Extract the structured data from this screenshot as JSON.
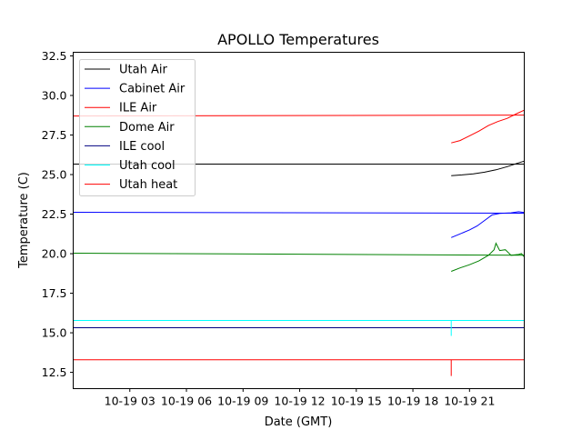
{
  "chart_data": {
    "type": "line",
    "title": "APOLLO Temperatures",
    "xlabel": "Date (GMT)",
    "ylabel": "Temperature (C)",
    "x_unit": "hours since 10-19 00",
    "xlim": [
      0,
      23.9
    ],
    "ylim": [
      11.47,
      32.73
    ],
    "xticks": [
      {
        "value": 3,
        "label": "10-19 03"
      },
      {
        "value": 6,
        "label": "10-19 06"
      },
      {
        "value": 9,
        "label": "10-19 09"
      },
      {
        "value": 12,
        "label": "10-19 12"
      },
      {
        "value": 15,
        "label": "10-19 15"
      },
      {
        "value": 18,
        "label": "10-19 18"
      },
      {
        "value": 21,
        "label": "10-19 21"
      }
    ],
    "yticks": [
      {
        "value": 12.5,
        "label": "12.5"
      },
      {
        "value": 15.0,
        "label": "15.0"
      },
      {
        "value": 17.5,
        "label": "17.5"
      },
      {
        "value": 20.0,
        "label": "20.0"
      },
      {
        "value": 22.5,
        "label": "22.5"
      },
      {
        "value": 25.0,
        "label": "25.0"
      },
      {
        "value": 27.5,
        "label": "27.5"
      },
      {
        "value": 30.0,
        "label": "30.0"
      },
      {
        "value": 32.5,
        "label": "32.5"
      }
    ],
    "grid": false,
    "legend_position": "upper-left",
    "series": [
      {
        "name": "Utah Air",
        "color": "#000000",
        "segments": [
          [
            [
              0,
              25.66
            ],
            [
              23.9,
              25.66
            ]
          ],
          [
            [
              20.03,
              24.93
            ],
            [
              20.6,
              24.98
            ],
            [
              21.2,
              25.05
            ],
            [
              21.8,
              25.15
            ],
            [
              22.4,
              25.3
            ],
            [
              23.0,
              25.5
            ],
            [
              23.5,
              25.7
            ],
            [
              23.9,
              25.85
            ]
          ]
        ]
      },
      {
        "name": "Cabinet Air",
        "color": "#0000ff",
        "segments": [
          [
            [
              0,
              22.62
            ],
            [
              23.9,
              22.56
            ]
          ],
          [
            [
              20.03,
              21.02
            ],
            [
              20.5,
              21.25
            ],
            [
              21.0,
              21.5
            ],
            [
              21.4,
              21.75
            ],
            [
              21.8,
              22.1
            ],
            [
              22.2,
              22.45
            ],
            [
              22.6,
              22.55
            ],
            [
              23.2,
              22.58
            ],
            [
              23.6,
              22.65
            ],
            [
              23.9,
              22.6
            ]
          ]
        ]
      },
      {
        "name": "ILE Air",
        "color": "#ff0000",
        "segments": [
          [
            [
              0,
              28.7
            ],
            [
              23.9,
              28.76
            ]
          ],
          [
            [
              20.03,
              27.0
            ],
            [
              20.5,
              27.15
            ],
            [
              21.0,
              27.45
            ],
            [
              21.5,
              27.75
            ],
            [
              22.0,
              28.1
            ],
            [
              22.5,
              28.35
            ],
            [
              23.0,
              28.55
            ],
            [
              23.5,
              28.85
            ],
            [
              23.9,
              29.07
            ]
          ]
        ]
      },
      {
        "name": "Dome Air",
        "color": "#008000",
        "segments": [
          [
            [
              0,
              20.03
            ],
            [
              23.9,
              19.9
            ]
          ],
          [
            [
              20.03,
              18.88
            ],
            [
              20.5,
              19.1
            ],
            [
              21.0,
              19.3
            ],
            [
              21.5,
              19.55
            ],
            [
              22.0,
              19.9
            ],
            [
              22.3,
              20.25
            ],
            [
              22.4,
              20.66
            ],
            [
              22.6,
              20.2
            ],
            [
              22.9,
              20.25
            ],
            [
              23.2,
              19.9
            ],
            [
              23.6,
              19.95
            ],
            [
              23.75,
              20.0
            ],
            [
              23.9,
              19.8
            ]
          ]
        ]
      },
      {
        "name": "ILE cool",
        "color": "#000080",
        "segments": [
          [
            [
              0,
              15.32
            ],
            [
              23.9,
              15.32
            ]
          ]
        ]
      },
      {
        "name": "Utah cool",
        "color": "#00ffff",
        "segments": [
          [
            [
              0,
              15.78
            ],
            [
              23.9,
              15.78
            ]
          ],
          [
            [
              20.03,
              15.78
            ],
            [
              20.03,
              14.8
            ]
          ]
        ]
      },
      {
        "name": "Utah heat",
        "color": "#ff0000",
        "segments": [
          [
            [
              0,
              13.3
            ],
            [
              23.9,
              13.3
            ]
          ],
          [
            [
              20.03,
              13.3
            ],
            [
              20.03,
              12.27
            ]
          ]
        ]
      }
    ]
  }
}
